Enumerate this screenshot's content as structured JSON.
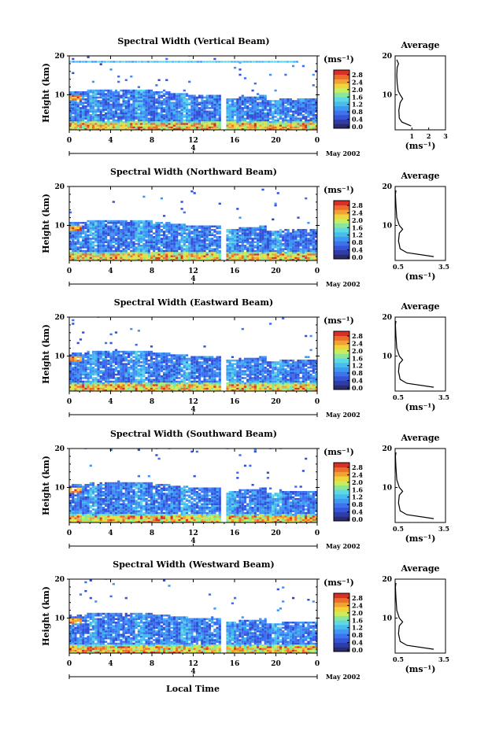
{
  "colors": {
    "colormap": [
      "#2b2b6e",
      "#2f3fb0",
      "#3450d8",
      "#3d6ff0",
      "#3f95f2",
      "#45b8f0",
      "#5ad6e6",
      "#6ee7c6",
      "#86ea93",
      "#c8ef5a",
      "#f2d83c",
      "#f2a033",
      "#ef6a2c",
      "#d83027"
    ],
    "bar_colors": [
      "#2a2a70",
      "#2e3da8",
      "#3554d6",
      "#3d74ee",
      "#3f99f0",
      "#47bdee",
      "#5ed8e2",
      "#8ae69a",
      "#c9ed5c",
      "#f1d43a",
      "#f0a232",
      "#ec6c2c",
      "#d83026"
    ]
  },
  "panels": [
    {
      "title": "Spectral Width (Vertical Beam)",
      "ylabel": "Height (km)",
      "yticks": [
        "20",
        "10"
      ],
      "xticks": [
        "0",
        "4",
        "8",
        "12",
        "16",
        "20",
        "0"
      ],
      "date_tick": "4",
      "date_label": "May 2002",
      "unit": "(ms⁻¹)",
      "colorbar_ticks": [
        "2.8",
        "2.4",
        "2.0",
        "1.6",
        "1.2",
        "0.8",
        "0.4",
        "0.0"
      ],
      "avg_title": "Average",
      "avg_yticks": [
        "20",
        "10"
      ],
      "avg_xticks": [
        "1",
        "2",
        "3"
      ],
      "avg_xlabel": "(ms⁻¹)"
    },
    {
      "title": "Spectral Width (Northward Beam)",
      "ylabel": "Height (km)",
      "yticks": [
        "20",
        "10"
      ],
      "xticks": [
        "0",
        "4",
        "8",
        "12",
        "16",
        "20",
        "0"
      ],
      "date_tick": "4",
      "date_label": "May 2002",
      "unit": "(ms⁻¹)",
      "colorbar_ticks": [
        "2.8",
        "2.4",
        "2.0",
        "1.6",
        "1.2",
        "0.8",
        "0.4",
        "0.0"
      ],
      "avg_title": "Average",
      "avg_yticks": [
        "20",
        "10"
      ],
      "avg_xticks": [
        "0.5",
        "3.5"
      ],
      "avg_xlabel": "(ms⁻¹)"
    },
    {
      "title": "Spectral Width (Eastward Beam)",
      "ylabel": "Height (km)",
      "yticks": [
        "20",
        "10"
      ],
      "xticks": [
        "0",
        "4",
        "8",
        "12",
        "16",
        "20",
        "0"
      ],
      "date_tick": "4",
      "date_label": "May 2002",
      "unit": "(ms⁻¹)",
      "colorbar_ticks": [
        "2.8",
        "2.4",
        "2.0",
        "1.6",
        "1.2",
        "0.8",
        "0.4",
        "0.0"
      ],
      "avg_title": "Average",
      "avg_yticks": [
        "20",
        "10"
      ],
      "avg_xticks": [
        "0.5",
        "3.5"
      ],
      "avg_xlabel": "(ms⁻¹)"
    },
    {
      "title": "Spectral Width (Southward Beam)",
      "ylabel": "Height (km)",
      "yticks": [
        "20",
        "10"
      ],
      "xticks": [
        "0",
        "4",
        "8",
        "12",
        "16",
        "20",
        "0"
      ],
      "date_tick": "4",
      "date_label": "May 2002",
      "unit": "(ms⁻¹)",
      "colorbar_ticks": [
        "2.8",
        "2.4",
        "2.0",
        "1.6",
        "1.2",
        "0.8",
        "0.4",
        "0.0"
      ],
      "avg_title": "Average",
      "avg_yticks": [
        "20",
        "10"
      ],
      "avg_xticks": [
        "0.5",
        "3.5"
      ],
      "avg_xlabel": "(ms⁻¹)"
    },
    {
      "title": "Spectral Width (Westward Beam)",
      "ylabel": "Height (km)",
      "yticks": [
        "20",
        "10"
      ],
      "xticks": [
        "0",
        "4",
        "8",
        "12",
        "16",
        "20",
        "0"
      ],
      "date_tick": "4",
      "date_label": "May 2002",
      "unit": "(ms⁻¹)",
      "colorbar_ticks": [
        "2.8",
        "2.4",
        "2.0",
        "1.6",
        "1.2",
        "0.8",
        "0.4",
        "0.0"
      ],
      "avg_title": "Average",
      "avg_yticks": [
        "20",
        "10"
      ],
      "avg_xticks": [
        "0.5",
        "3.5"
      ],
      "avg_xlabel": "(ms⁻¹)"
    }
  ],
  "xlabel": "Local Time",
  "chart_data": [
    {
      "type": "heatmap",
      "title": "Spectral Width (Vertical Beam)",
      "xlabel": "",
      "ylabel": "Height (km)",
      "xlim": [
        0,
        24
      ],
      "ylim": [
        1,
        20
      ],
      "colorbar": {
        "label": "(ms⁻¹)",
        "range": [
          0.0,
          2.8
        ]
      },
      "data_gap_hours": [
        14.5,
        14.9
      ],
      "observed": [
        {
          "height_km": [
            1,
            3
          ],
          "spectral_width_ms": [
            1.6,
            2.8
          ]
        },
        {
          "height_km": [
            3,
            11
          ],
          "spectral_width_ms": [
            0.4,
            1.2
          ]
        },
        {
          "height_km": [
            8.5,
            9.5
          ],
          "time_h": [
            0,
            1
          ],
          "spectral_width_ms": [
            2.0,
            2.8
          ]
        },
        {
          "height_km": [
            18,
            18.5
          ],
          "spectral_width_ms": [
            0.8,
            1.6
          ]
        }
      ],
      "average_profile": {
        "x_label": "(ms⁻¹)",
        "xlim": [
          0,
          3
        ],
        "height_km": [
          2,
          3,
          4,
          6,
          8,
          9,
          10,
          11,
          13,
          15,
          17,
          18,
          19
        ],
        "value_ms": [
          0.95,
          0.4,
          0.25,
          0.22,
          0.3,
          0.45,
          0.3,
          0.18,
          0.12,
          0.1,
          0.12,
          0.2,
          0.1
        ]
      }
    },
    {
      "type": "heatmap",
      "title": "Spectral Width (Northward Beam)",
      "xlabel": "",
      "ylabel": "Height (km)",
      "xlim": [
        0,
        24
      ],
      "ylim": [
        1,
        20
      ],
      "colorbar": {
        "label": "(ms⁻¹)",
        "range": [
          0.0,
          2.8
        ]
      },
      "data_gap_hours": [
        14.5,
        14.9
      ],
      "observed": [
        {
          "height_km": [
            1,
            3
          ],
          "spectral_width_ms": [
            1.6,
            2.8
          ]
        },
        {
          "height_km": [
            3,
            11
          ],
          "spectral_width_ms": [
            0.4,
            1.2
          ]
        },
        {
          "height_km": [
            8.5,
            9.5
          ],
          "time_h": [
            0,
            1
          ],
          "spectral_width_ms": [
            2.0,
            2.8
          ]
        }
      ],
      "average_profile": {
        "x_label": "(ms⁻¹)",
        "xlim": [
          0.5,
          3.5
        ],
        "height_km": [
          2,
          3,
          4,
          6,
          8,
          9,
          10,
          12,
          15,
          18,
          19
        ],
        "value_ms": [
          2.8,
          1.2,
          0.8,
          0.7,
          0.75,
          0.95,
          0.75,
          0.6,
          0.55,
          0.52,
          0.55
        ]
      }
    },
    {
      "type": "heatmap",
      "title": "Spectral Width (Eastward Beam)",
      "xlabel": "",
      "ylabel": "Height (km)",
      "xlim": [
        0,
        24
      ],
      "ylim": [
        1,
        20
      ],
      "colorbar": {
        "label": "(ms⁻¹)",
        "range": [
          0.0,
          2.8
        ]
      },
      "data_gap_hours": [
        14.5,
        14.9
      ],
      "observed": [
        {
          "height_km": [
            1,
            3
          ],
          "spectral_width_ms": [
            1.6,
            2.8
          ]
        },
        {
          "height_km": [
            3,
            11
          ],
          "spectral_width_ms": [
            0.4,
            1.2
          ]
        },
        {
          "height_km": [
            8.5,
            9.5
          ],
          "time_h": [
            0,
            1
          ],
          "spectral_width_ms": [
            2.0,
            2.8
          ]
        }
      ],
      "average_profile": {
        "x_label": "(ms⁻¹)",
        "xlim": [
          0.5,
          3.5
        ],
        "height_km": [
          2,
          3,
          4,
          6,
          8,
          9,
          10,
          12,
          15,
          18,
          19
        ],
        "value_ms": [
          2.8,
          1.2,
          0.8,
          0.7,
          0.75,
          0.95,
          0.75,
          0.6,
          0.55,
          0.52,
          0.55
        ]
      }
    },
    {
      "type": "heatmap",
      "title": "Spectral Width (Southward Beam)",
      "xlabel": "",
      "ylabel": "Height (km)",
      "xlim": [
        0,
        24
      ],
      "ylim": [
        1,
        20
      ],
      "colorbar": {
        "label": "(ms⁻¹)",
        "range": [
          0.0,
          2.8
        ]
      },
      "data_gap_hours": [
        14.5,
        14.9
      ],
      "observed": [
        {
          "height_km": [
            1,
            3
          ],
          "spectral_width_ms": [
            1.6,
            2.8
          ]
        },
        {
          "height_km": [
            3,
            11
          ],
          "spectral_width_ms": [
            0.4,
            1.2
          ]
        },
        {
          "height_km": [
            8.5,
            9.5
          ],
          "time_h": [
            0,
            1
          ],
          "spectral_width_ms": [
            2.0,
            2.8
          ]
        }
      ],
      "average_profile": {
        "x_label": "(ms⁻¹)",
        "xlim": [
          0.5,
          3.5
        ],
        "height_km": [
          2,
          3,
          4,
          6,
          8,
          9,
          10,
          12,
          15,
          18,
          19
        ],
        "value_ms": [
          2.8,
          1.2,
          0.8,
          0.7,
          0.75,
          0.95,
          0.75,
          0.6,
          0.55,
          0.52,
          0.55
        ]
      }
    },
    {
      "type": "heatmap",
      "title": "Spectral Width (Westward Beam)",
      "xlabel": "Local Time",
      "ylabel": "Height (km)",
      "xlim": [
        0,
        24
      ],
      "ylim": [
        1,
        20
      ],
      "colorbar": {
        "label": "(ms⁻¹)",
        "range": [
          0.0,
          2.8
        ]
      },
      "data_gap_hours": [
        14.5,
        14.9
      ],
      "observed": [
        {
          "height_km": [
            1,
            3
          ],
          "spectral_width_ms": [
            1.6,
            2.8
          ]
        },
        {
          "height_km": [
            3,
            11
          ],
          "spectral_width_ms": [
            0.4,
            1.2
          ]
        },
        {
          "height_km": [
            8.5,
            9.5
          ],
          "time_h": [
            0,
            1
          ],
          "spectral_width_ms": [
            2.0,
            2.8
          ]
        }
      ],
      "average_profile": {
        "x_label": "(ms⁻¹)",
        "xlim": [
          0.5,
          3.5
        ],
        "height_km": [
          2,
          3,
          4,
          6,
          8,
          9,
          10,
          12,
          15,
          18,
          19
        ],
        "value_ms": [
          2.8,
          1.2,
          0.8,
          0.7,
          0.75,
          0.95,
          0.75,
          0.6,
          0.55,
          0.52,
          0.55
        ]
      }
    }
  ]
}
